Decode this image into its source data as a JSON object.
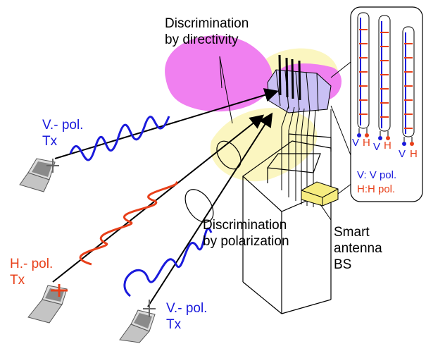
{
  "labels": {
    "directivity_line1": "Discrimination",
    "directivity_line2": "by directivity",
    "polarization_line1": "Discrimination",
    "polarization_line2": "by polarization",
    "v_pol_tx_top_line1": "V.- pol.",
    "v_pol_tx_top_line2": "Tx",
    "h_pol_tx_line1": "H.- pol.",
    "h_pol_tx_line2": "Tx",
    "v_pol_tx_bottom_line1": "V.- pol.",
    "v_pol_tx_bottom_line2": "Tx",
    "smart_antenna_line1": "Smart",
    "smart_antenna_line2": "antenna",
    "smart_antenna_line3": "BS",
    "legend_v": "V: V pol.",
    "legend_h": "H:H pol.",
    "element_v": "V",
    "element_h": "H"
  },
  "colors": {
    "vertical_pol": "#1a1adc",
    "horizontal_pol": "#e8401a",
    "beam_lobe": "#f080f0",
    "beam_cone": "#fbf6c0",
    "base_station_box": "#f6ec80"
  }
}
